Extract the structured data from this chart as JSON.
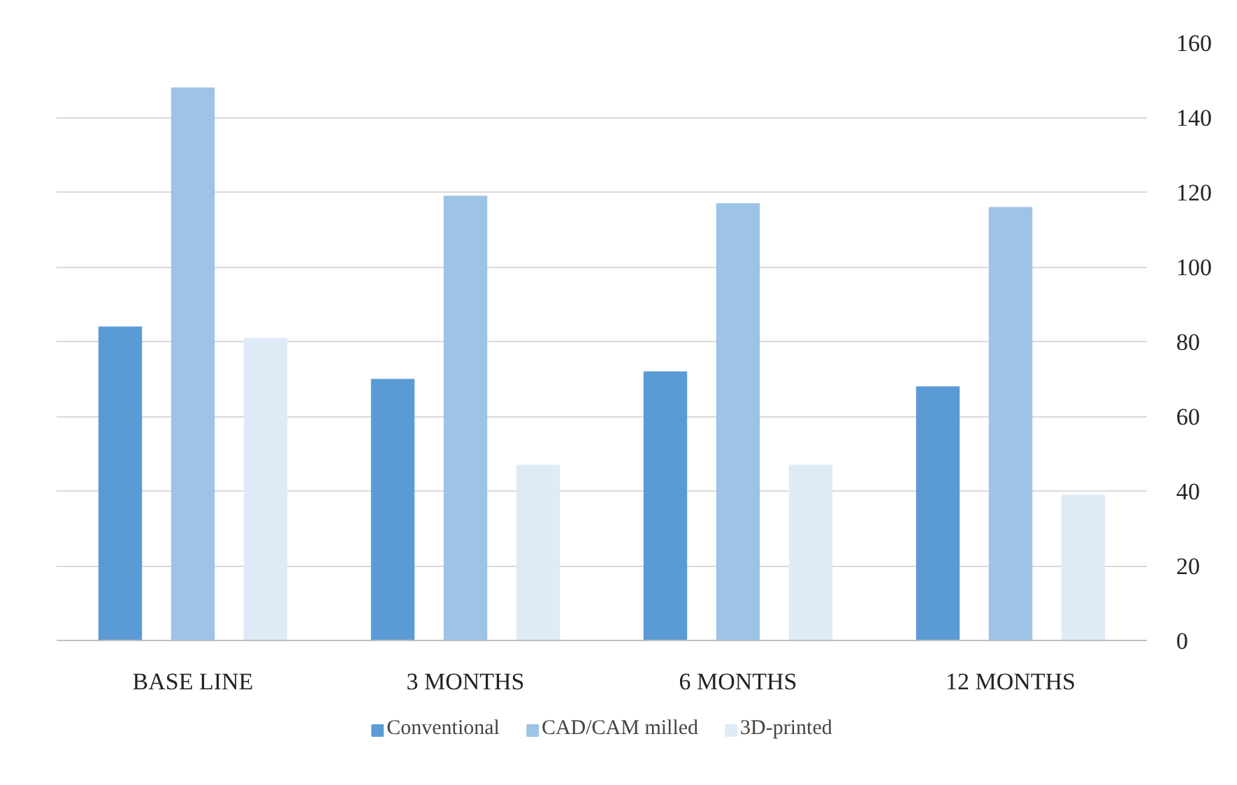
{
  "chart_data": {
    "type": "bar",
    "categories": [
      "BASE LINE",
      "3 MONTHS",
      "6 MONTHS",
      "12 MONTHS"
    ],
    "series": [
      {
        "name": "Conventional",
        "color": "#5b9bd5",
        "values": [
          84,
          70,
          72,
          68
        ]
      },
      {
        "name": "CAD/CAM milled",
        "color": "#9dc3e6",
        "values": [
          148,
          119,
          117,
          116
        ]
      },
      {
        "name": "3D-printed",
        "color": "#deebf7",
        "values": [
          81,
          47,
          47,
          39
        ]
      }
    ],
    "ylim": [
      0,
      160
    ],
    "yticks": [
      0,
      20,
      40,
      60,
      80,
      100,
      120,
      140,
      160
    ],
    "grid": "y",
    "legend": "bottom"
  }
}
